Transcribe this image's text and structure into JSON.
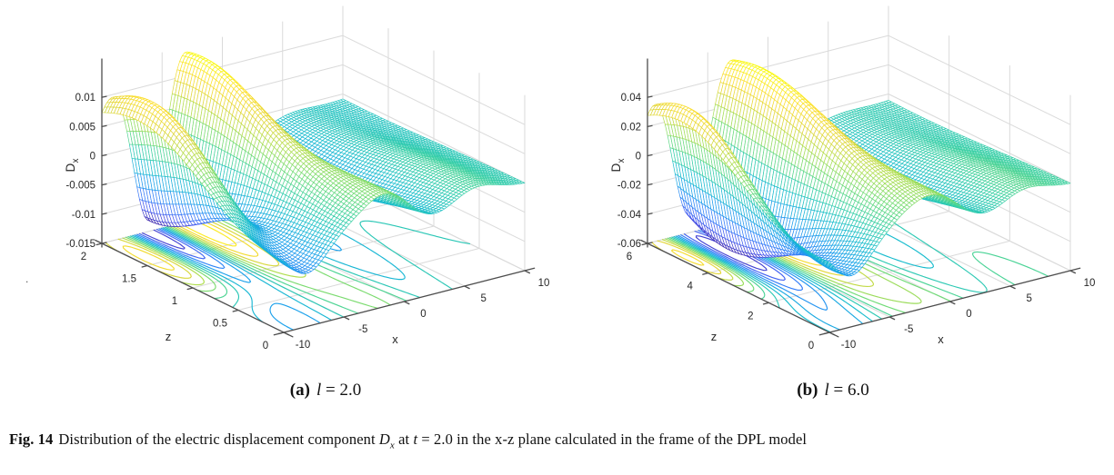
{
  "style": {
    "background": "#ffffff",
    "axis_color": "#4d4d4d",
    "grid_color": "#dadada",
    "tick_label_color": "#262626",
    "colormap": "parula",
    "colormap_stops": [
      [
        62,
        38,
        168
      ],
      [
        72,
        87,
        238
      ],
      [
        51,
        127,
        249
      ],
      [
        28,
        161,
        235
      ],
      [
        24,
        188,
        206
      ],
      [
        55,
        207,
        166
      ],
      [
        110,
        219,
        119
      ],
      [
        175,
        221,
        77
      ],
      [
        226,
        214,
        56
      ],
      [
        252,
        222,
        44
      ],
      [
        249,
        251,
        20
      ]
    ]
  },
  "figure": {
    "stray_mark": ".",
    "caption": {
      "fig_label": "Fig. 14",
      "text1": "Distribution of the electric displacement component ",
      "d_sym": "D",
      "d_sub": "x",
      "text2": " at ",
      "t_sym": "t",
      "text3": " = 2.0 in the x-z plane calculated in the frame of the DPL model"
    }
  },
  "chart_data": [
    {
      "type": "3d-surface-mesh-with-floor-contours",
      "caption": {
        "label": "(a)",
        "var": "l",
        "value": "= 2.0"
      },
      "xlabel": "x",
      "zlabel": "z",
      "ylabel_base": "D",
      "ylabel_sub": "x",
      "xlim": [
        -10,
        10
      ],
      "xticks": [
        -10,
        -5,
        0,
        5,
        10
      ],
      "zlim": [
        0,
        2
      ],
      "zticks": [
        0,
        0.5,
        1,
        1.5,
        2
      ],
      "ylim": [
        -0.015,
        0.015
      ],
      "yticks": [
        0.01,
        0.005,
        0,
        -0.005,
        -0.01,
        -0.015
      ],
      "amplitude": 0.0141,
      "n_contours": 12,
      "surface_model": {
        "comment": "sum of gaussian bumps in normalized (u,v); [gain,cu,wu,cv,wv]",
        "bumps": [
          [
            1.0,
            0.065,
            0.105,
            0.78,
            0.46
          ],
          [
            1.12,
            0.335,
            0.115,
            0.92,
            0.5
          ],
          [
            -1.35,
            0.195,
            0.09,
            0.95,
            0.48
          ],
          [
            -0.5,
            0.09,
            0.11,
            0.12,
            0.45
          ],
          [
            0.34,
            0.44,
            0.13,
            0.08,
            0.5
          ],
          [
            -0.38,
            0.6,
            0.15,
            0.55,
            0.6
          ],
          [
            0.16,
            0.79,
            0.13,
            0.22,
            0.55
          ],
          [
            -0.08,
            0.92,
            0.18,
            0.85,
            0.6
          ]
        ]
      }
    },
    {
      "type": "3d-surface-mesh-with-floor-contours",
      "caption": {
        "label": "(b)",
        "var": "l",
        "value": "= 6.0"
      },
      "xlabel": "x",
      "zlabel": "z",
      "ylabel_base": "D",
      "ylabel_sub": "x",
      "xlim": [
        -10,
        10
      ],
      "xticks": [
        -10,
        -5,
        0,
        5,
        10
      ],
      "zlim": [
        0,
        6
      ],
      "zticks": [
        0,
        2,
        4,
        6
      ],
      "ylim": [
        -0.06,
        0.06
      ],
      "yticks": [
        0.04,
        0.02,
        0,
        -0.02,
        -0.04,
        -0.06
      ],
      "amplitude": 0.0555,
      "n_contours": 14,
      "surface_model": {
        "comment": "sum of gaussian bumps in normalized (u,v); [gain,cu,wu,cv,wv]",
        "bumps": [
          [
            0.95,
            0.045,
            0.08,
            0.8,
            0.4
          ],
          [
            1.1,
            0.33,
            0.13,
            0.85,
            0.55
          ],
          [
            -1.38,
            0.185,
            0.1,
            0.8,
            0.5
          ],
          [
            -0.45,
            0.08,
            0.1,
            0.1,
            0.45
          ],
          [
            0.3,
            0.46,
            0.14,
            0.08,
            0.5
          ],
          [
            -0.36,
            0.62,
            0.16,
            0.5,
            0.6
          ],
          [
            0.15,
            0.8,
            0.13,
            0.22,
            0.55
          ],
          [
            -0.1,
            0.93,
            0.2,
            0.8,
            0.6
          ]
        ]
      }
    }
  ]
}
